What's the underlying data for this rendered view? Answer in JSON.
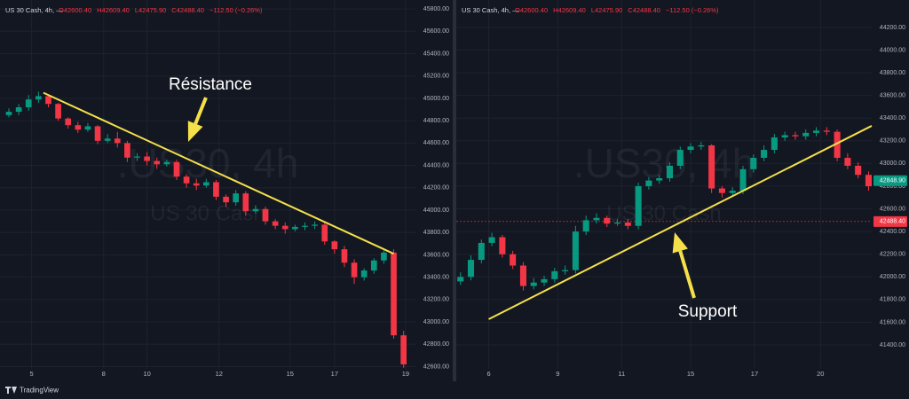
{
  "chart_data": [
    {
      "type": "candlestick",
      "symbol": "US 30 Cash, 4h, —",
      "ohlc_labels": [
        "O42600.40",
        "H42609.40",
        "L42475.90",
        "C42488.40",
        "−112.50 (−0.26%)"
      ],
      "watermark": ".US30, 4h",
      "watermark_sub": "US 30 Cash",
      "annotation": "Résistance",
      "up_color": "#089981",
      "down_color": "#f23645",
      "x": [
        0,
        1,
        2,
        3,
        4,
        5,
        6,
        7,
        8,
        9,
        10,
        11,
        12,
        13,
        14,
        15,
        16,
        17,
        18,
        19,
        20,
        21,
        22,
        23,
        24,
        25,
        26,
        27,
        28,
        29,
        30,
        31,
        32,
        33,
        34,
        35,
        36,
        37,
        38,
        39,
        40
      ],
      "open": [
        44850,
        44880,
        44920,
        44990,
        45020,
        44950,
        44820,
        44760,
        44720,
        44750,
        44620,
        44640,
        44600,
        44470,
        44480,
        44440,
        44410,
        44430,
        44300,
        44240,
        44220,
        44250,
        44120,
        44070,
        44150,
        43990,
        44010,
        43900,
        43860,
        43830,
        43850,
        43860,
        43870,
        43720,
        43650,
        43530,
        43400,
        43460,
        43550,
        43620,
        42880
      ],
      "high": [
        44910,
        44950,
        45030,
        45060,
        45030,
        44960,
        44830,
        44790,
        44780,
        44760,
        44680,
        44700,
        44620,
        44510,
        44520,
        44470,
        44450,
        44450,
        44320,
        44280,
        44280,
        44270,
        44140,
        44180,
        44170,
        44040,
        44030,
        43920,
        43890,
        43870,
        43890,
        43900,
        43890,
        43730,
        43680,
        43560,
        43480,
        43570,
        43640,
        43650,
        42920
      ],
      "low": [
        44830,
        44850,
        44890,
        44960,
        44920,
        44800,
        44730,
        44690,
        44700,
        44590,
        44600,
        44560,
        44430,
        44440,
        44400,
        44370,
        44390,
        44270,
        44200,
        44180,
        44200,
        44090,
        44030,
        44040,
        43950,
        43970,
        43870,
        43830,
        43790,
        43810,
        43820,
        43830,
        43690,
        43610,
        43490,
        43340,
        43370,
        43430,
        43520,
        42850,
        42590
      ],
      "close": [
        44880,
        44920,
        44990,
        45020,
        44950,
        44820,
        44760,
        44720,
        44750,
        44620,
        44640,
        44600,
        44470,
        44480,
        44440,
        44410,
        44430,
        44300,
        44240,
        44220,
        44250,
        44120,
        44070,
        44150,
        43990,
        44010,
        43900,
        43860,
        43830,
        43850,
        43860,
        43870,
        43720,
        43650,
        43530,
        43400,
        43460,
        43550,
        43620,
        42880,
        42620
      ],
      "trendline": {
        "x": [
          3.5,
          39
        ],
        "y": [
          45050,
          43610
        ],
        "color": "#f5e04a"
      },
      "xlim": [
        -0.9,
        41.2
      ],
      "xticks": [
        {
          "value": 2.3,
          "label": "5"
        },
        {
          "value": 9.6,
          "label": "8"
        },
        {
          "value": 14,
          "label": "10"
        },
        {
          "value": 21.3,
          "label": "12"
        },
        {
          "value": 28.5,
          "label": "15"
        },
        {
          "value": 33,
          "label": "17"
        },
        {
          "value": 40.2,
          "label": "19"
        }
      ],
      "ylim": [
        42580,
        45880
      ],
      "yticks": [
        {
          "value": 42600,
          "label": "42600.00"
        },
        {
          "value": 42800,
          "label": "42800.00"
        },
        {
          "value": 43000,
          "label": "43000.00"
        },
        {
          "value": 43200,
          "label": "43200.00"
        },
        {
          "value": 43400,
          "label": "43400.00"
        },
        {
          "value": 43600,
          "label": "43600.00"
        },
        {
          "value": 43800,
          "label": "43800.00"
        },
        {
          "value": 44000,
          "label": "44000.00"
        },
        {
          "value": 44200,
          "label": "44200.00"
        },
        {
          "value": 44400,
          "label": "44400.00"
        },
        {
          "value": 44600,
          "label": "44600.00"
        },
        {
          "value": 44800,
          "label": "44800.00"
        },
        {
          "value": 45000,
          "label": "45000.00"
        },
        {
          "value": 45200,
          "label": "45200.00"
        },
        {
          "value": 45400,
          "label": "45400.00"
        },
        {
          "value": 45600,
          "label": "45600.00"
        },
        {
          "value": 45800,
          "label": "45800.00"
        }
      ],
      "price_labels": [],
      "grid": true
    },
    {
      "type": "candlestick",
      "symbol": "US 30 Cash, 4h, —",
      "ohlc_labels": [
        "O42600.40",
        "H42609.40",
        "L42475.90",
        "C42488.40",
        "−112.50 (−0.26%)"
      ],
      "watermark": ".US30, 4h",
      "watermark_sub": "US 30 Cash",
      "annotation": "Support",
      "up_color": "#089981",
      "down_color": "#f23645",
      "x": [
        0,
        1,
        2,
        3,
        4,
        5,
        6,
        7,
        8,
        9,
        10,
        11,
        12,
        13,
        14,
        15,
        16,
        17,
        18,
        19,
        20,
        21,
        22,
        23,
        24,
        25,
        26,
        27,
        28,
        29,
        30,
        31,
        32,
        33,
        34,
        35,
        36,
        37,
        38,
        39
      ],
      "open": [
        41960,
        42000,
        42150,
        42300,
        42350,
        42200,
        42100,
        41920,
        41950,
        41980,
        42050,
        42060,
        42400,
        42500,
        42520,
        42470,
        42480,
        42450,
        42800,
        42850,
        42870,
        42980,
        43120,
        43150,
        43160,
        42780,
        42740,
        42760,
        42950,
        43050,
        43120,
        43230,
        43250,
        43240,
        43270,
        43290,
        43280,
        43050,
        42980,
        42900
      ],
      "high": [
        42040,
        42190,
        42330,
        42390,
        42370,
        42230,
        42130,
        41990,
        42010,
        42080,
        42100,
        42450,
        42540,
        42560,
        42540,
        42510,
        42510,
        42830,
        42880,
        42900,
        43010,
        43150,
        43180,
        43190,
        43170,
        42800,
        42790,
        42980,
        43080,
        43160,
        43260,
        43280,
        43280,
        43300,
        43320,
        43320,
        43300,
        43090,
        43010,
        42930
      ],
      "low": [
        41930,
        41970,
        42120,
        42270,
        42170,
        42070,
        41880,
        41890,
        41920,
        41950,
        42020,
        42030,
        42370,
        42470,
        42440,
        42450,
        42420,
        42420,
        42770,
        42820,
        42840,
        42950,
        43090,
        43120,
        42740,
        42700,
        42710,
        42730,
        42920,
        43020,
        43090,
        43200,
        43210,
        43210,
        43240,
        43250,
        43020,
        42950,
        42870,
        42760
      ],
      "close": [
        42000,
        42150,
        42300,
        42350,
        42200,
        42100,
        41920,
        41950,
        41980,
        42050,
        42060,
        42400,
        42500,
        42520,
        42470,
        42480,
        42450,
        42800,
        42850,
        42870,
        42980,
        43120,
        43150,
        43160,
        42780,
        42740,
        42760,
        42950,
        43050,
        43120,
        43230,
        43250,
        43240,
        43270,
        43290,
        43280,
        43050,
        42980,
        42900,
        42800
      ],
      "trendline": {
        "x": [
          2.7,
          39.3
        ],
        "y": [
          41627,
          43332
        ],
        "color": "#f5e04a"
      },
      "xlim": [
        -0.4,
        39.3
      ],
      "xticks": [
        {
          "value": 2.7,
          "label": "6"
        },
        {
          "value": 9.3,
          "label": "9"
        },
        {
          "value": 15.4,
          "label": "11"
        },
        {
          "value": 22,
          "label": "15"
        },
        {
          "value": 28.1,
          "label": "17"
        },
        {
          "value": 34.4,
          "label": "20"
        }
      ],
      "ylim": [
        41189,
        44442
      ],
      "yticks": [
        {
          "value": 41400,
          "label": "41400.00"
        },
        {
          "value": 41600,
          "label": "41600.00"
        },
        {
          "value": 41800,
          "label": "41800.00"
        },
        {
          "value": 42000,
          "label": "42000.00"
        },
        {
          "value": 42200,
          "label": "42200.00"
        },
        {
          "value": 42400,
          "label": "42400.00"
        },
        {
          "value": 42600,
          "label": "42600.00"
        },
        {
          "value": 42800,
          "label": "42800.00"
        },
        {
          "value": 43000,
          "label": "43000.00"
        },
        {
          "value": 43200,
          "label": "43200.00"
        },
        {
          "value": 43400,
          "label": "43400.00"
        },
        {
          "value": 43600,
          "label": "43600.00"
        },
        {
          "value": 43800,
          "label": "43800.00"
        },
        {
          "value": 44000,
          "label": "44000.00"
        },
        {
          "value": 44200,
          "label": "44200.00"
        }
      ],
      "price_labels": [
        {
          "value": 42848.9,
          "label": "42848.90",
          "color": "#089981",
          "dashed": false
        },
        {
          "value": 42488.4,
          "label": "42488.40",
          "color": "#f23645",
          "dashed": true
        }
      ],
      "grid": true
    }
  ],
  "footer": "TradingView"
}
